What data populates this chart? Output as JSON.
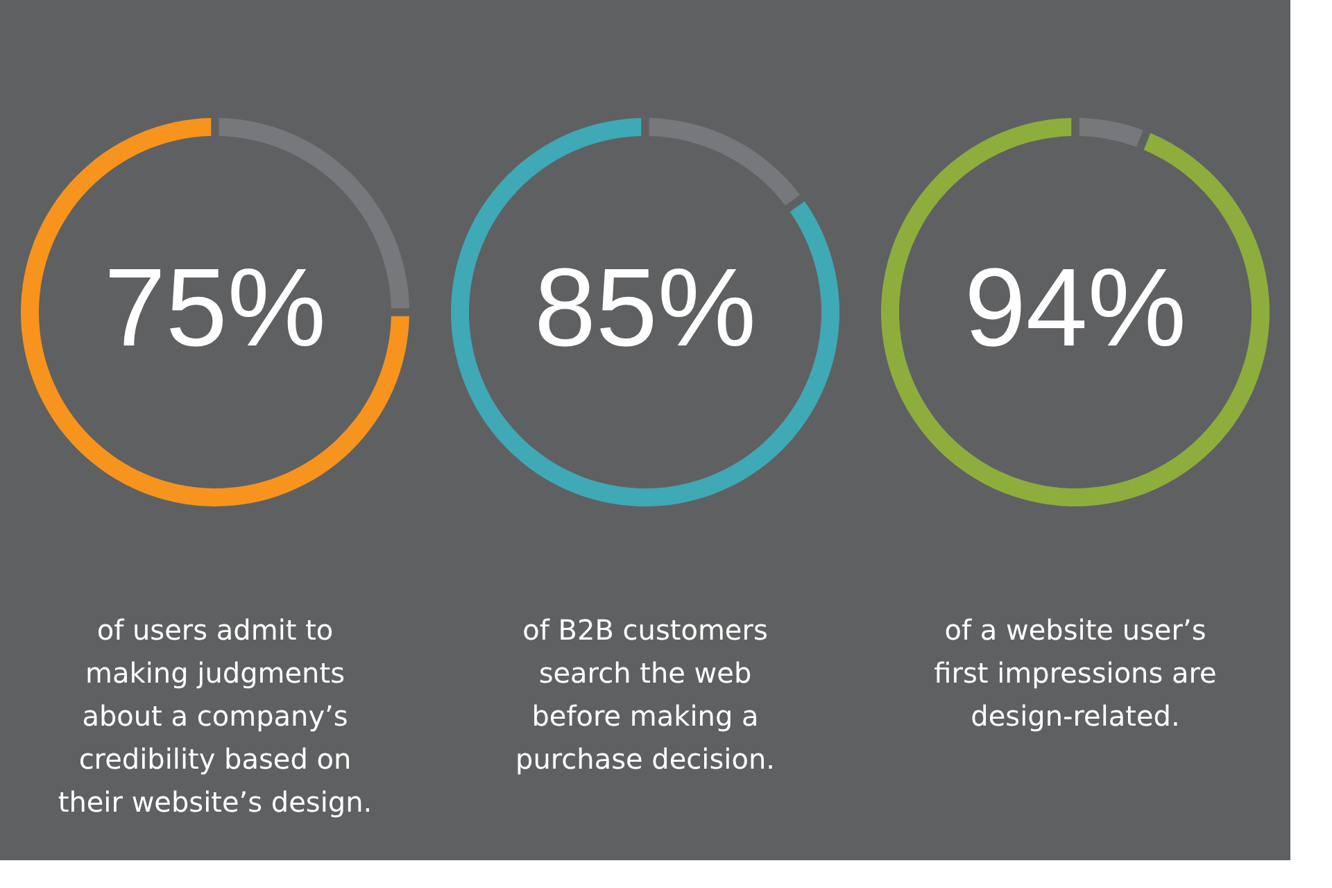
{
  "chart_data": [
    {
      "type": "donut",
      "categories": [
        null,
        null
      ],
      "values": [
        25,
        75
      ],
      "colors": [
        "#77787b",
        "#f7941d"
      ],
      "value_labels": [
        null,
        "75%"
      ],
      "annotations": [
        "of users admit to\nmaking judgments\nabout a company’s\ncredibility based on\ntheir website’s design."
      ]
    },
    {
      "type": "donut",
      "categories": [
        null,
        null
      ],
      "values": [
        15,
        85
      ],
      "colors": [
        "#77787b",
        "#3fa9b5"
      ],
      "value_labels": [
        null,
        "85%"
      ],
      "annotations": [
        "of B2B customers\nsearch the web\nbefore making a\npurchase decision."
      ]
    },
    {
      "type": "donut",
      "categories": [
        null,
        null
      ],
      "values": [
        6,
        94
      ],
      "colors": [
        "#77787b",
        "#8dae3c"
      ],
      "value_labels": [
        null,
        "94%"
      ],
      "annotations": [
        "of a website user’s\nfirst impressions are\ndesign-related."
      ]
    }
  ]
}
